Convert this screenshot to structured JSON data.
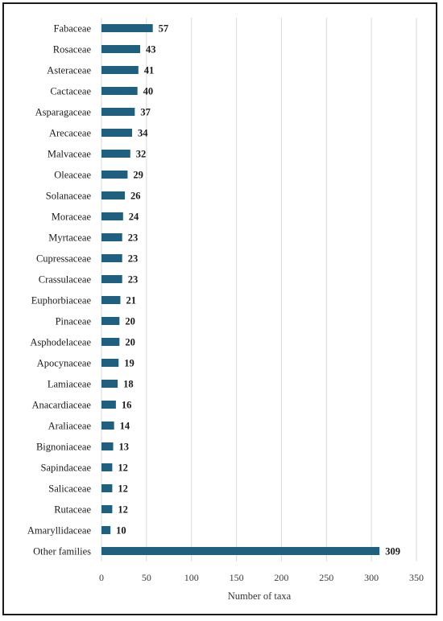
{
  "chart_data": {
    "type": "bar",
    "orientation": "horizontal",
    "title": "",
    "xlabel": "Number of taxa",
    "ylabel": "",
    "xlim": [
      0,
      350
    ],
    "x_ticks": [
      0,
      50,
      100,
      150,
      200,
      250,
      300,
      350
    ],
    "grid": "vertical",
    "bar_color": "#1f5f7f",
    "categories": [
      "Fabaceae",
      "Rosaceae",
      "Asteraceae",
      "Cactaceae",
      "Asparagaceae",
      "Arecaceae",
      "Malvaceae",
      "Oleaceae",
      "Solanaceae",
      "Moraceae",
      "Myrtaceae",
      "Cupressaceae",
      "Crassulaceae",
      "Euphorbiaceae",
      "Pinaceae",
      "Asphodelaceae",
      "Apocynaceae",
      "Lamiaceae",
      "Anacardiaceae",
      "Araliaceae",
      "Bignoniaceae",
      "Sapindaceae",
      "Salicaceae",
      "Rutaceae",
      "Amaryllidaceae",
      "Other families"
    ],
    "values": [
      57,
      43,
      41,
      40,
      37,
      34,
      32,
      29,
      26,
      24,
      23,
      23,
      23,
      21,
      20,
      20,
      19,
      18,
      16,
      14,
      13,
      12,
      12,
      12,
      10,
      309
    ]
  }
}
